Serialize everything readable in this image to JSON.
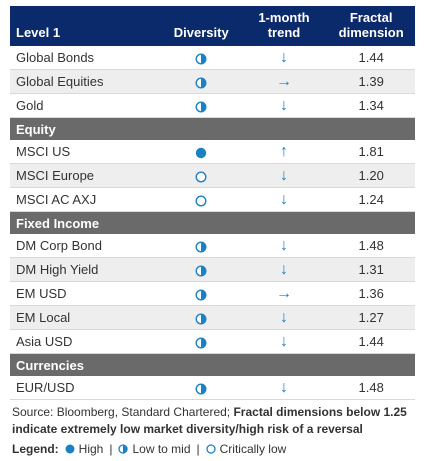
{
  "header": {
    "col1": "Level 1",
    "col2": "Diversity",
    "col3_line1": "1-month",
    "col3_line2": "trend",
    "col4_line1": "Fractal",
    "col4_line2": "dimension"
  },
  "groups": [
    {
      "title": "",
      "rows": [
        {
          "name": "Global Bonds",
          "diversity": "low-to-mid",
          "trend": "down",
          "value": "1.44"
        },
        {
          "name": "Global Equities",
          "diversity": "low-to-mid",
          "trend": "right",
          "value": "1.39"
        },
        {
          "name": "Gold",
          "diversity": "low-to-mid",
          "trend": "down",
          "value": "1.34"
        }
      ]
    },
    {
      "title": "Equity",
      "rows": [
        {
          "name": "MSCI US",
          "diversity": "high",
          "trend": "up",
          "value": "1.81"
        },
        {
          "name": "MSCI Europe",
          "diversity": "critically-low",
          "trend": "down",
          "value": "1.20"
        },
        {
          "name": "MSCI AC AXJ",
          "diversity": "critically-low",
          "trend": "down",
          "value": "1.24"
        }
      ]
    },
    {
      "title": "Fixed Income",
      "rows": [
        {
          "name": "DM Corp Bond",
          "diversity": "low-to-mid",
          "trend": "down",
          "value": "1.48"
        },
        {
          "name": "DM High Yield",
          "diversity": "low-to-mid",
          "trend": "down",
          "value": "1.31"
        },
        {
          "name": "EM USD",
          "diversity": "low-to-mid",
          "trend": "right",
          "value": "1.36"
        },
        {
          "name": "EM Local",
          "diversity": "low-to-mid",
          "trend": "down",
          "value": "1.27"
        },
        {
          "name": "Asia USD",
          "diversity": "low-to-mid",
          "trend": "down",
          "value": "1.44"
        }
      ]
    },
    {
      "title": "Currencies",
      "rows": [
        {
          "name": "EUR/USD",
          "diversity": "low-to-mid",
          "trend": "down",
          "value": "1.48"
        }
      ]
    }
  ],
  "source": {
    "normal": "Source: Bloomberg, Standard Chartered; ",
    "bold": "Fractal dimensions below 1.25 indicate extremely low market diversity/high risk of a reversal"
  },
  "legend": {
    "label": "Legend:",
    "high": "High",
    "low_to_mid": "Low to mid",
    "critically_low": "Critically low",
    "separator": "|"
  },
  "colors": {
    "header_bg": "#0a2a6b",
    "section_bg": "#6a6a6a",
    "icon_blue": "#1a82c4"
  },
  "icons": {
    "up": "↑",
    "down": "↓",
    "right": "→"
  }
}
